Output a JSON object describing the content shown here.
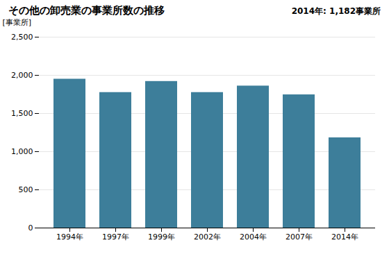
{
  "chart_data": {
    "type": "bar",
    "title": "その他の卸売業の事業所数の推移",
    "ylabel": "[事業所]",
    "annotation": "2014年: 1,182事業所",
    "categories": [
      "1994年",
      "1997年",
      "1999年",
      "2002年",
      "2004年",
      "2007年",
      "2014年"
    ],
    "values": [
      1950,
      1775,
      1920,
      1775,
      1860,
      1745,
      1182
    ],
    "color": "#3d7e9a",
    "ylim": [
      0,
      2500
    ],
    "yticks": [
      0,
      500,
      {
        "value": 1000,
        "label": "1,000"
      },
      {
        "value": 1500,
        "label": "1,500"
      },
      {
        "value": 2000,
        "label": "2,000"
      },
      {
        "value": 2500,
        "label": "2,500"
      }
    ],
    "grid": true
  }
}
